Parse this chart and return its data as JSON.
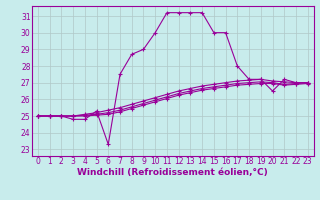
{
  "xlabel": "Windchill (Refroidissement éolien,°C)",
  "bg_color": "#c8ecec",
  "line_color": "#990099",
  "grid_color": "#b0c8c8",
  "x_ticks": [
    0,
    1,
    2,
    3,
    4,
    5,
    6,
    7,
    8,
    9,
    10,
    11,
    12,
    13,
    14,
    15,
    16,
    17,
    18,
    19,
    20,
    21,
    22,
    23
  ],
  "y_ticks": [
    23,
    24,
    25,
    26,
    27,
    28,
    29,
    30,
    31
  ],
  "ylim": [
    22.6,
    31.6
  ],
  "xlim": [
    -0.5,
    23.5
  ],
  "series": [
    [
      25.0,
      25.0,
      25.0,
      24.8,
      24.8,
      25.3,
      23.3,
      27.5,
      28.7,
      29.0,
      30.0,
      31.2,
      31.2,
      31.2,
      31.2,
      30.0,
      30.0,
      28.0,
      27.2,
      27.2,
      26.5,
      27.2,
      27.0,
      27.0
    ],
    [
      25.0,
      25.0,
      25.0,
      25.0,
      25.1,
      25.2,
      25.35,
      25.5,
      25.7,
      25.9,
      26.1,
      26.3,
      26.5,
      26.65,
      26.8,
      26.9,
      27.0,
      27.1,
      27.15,
      27.2,
      27.1,
      27.05,
      27.0,
      27.0
    ],
    [
      25.0,
      25.0,
      25.0,
      25.0,
      25.05,
      25.1,
      25.2,
      25.35,
      25.55,
      25.75,
      25.95,
      26.15,
      26.35,
      26.5,
      26.65,
      26.75,
      26.85,
      26.95,
      27.0,
      27.05,
      27.0,
      26.9,
      26.95,
      27.0
    ],
    [
      25.0,
      25.0,
      25.0,
      25.0,
      25.0,
      25.05,
      25.1,
      25.25,
      25.45,
      25.65,
      25.85,
      26.05,
      26.25,
      26.4,
      26.55,
      26.65,
      26.75,
      26.85,
      26.9,
      26.95,
      26.95,
      26.85,
      26.9,
      26.95
    ]
  ],
  "tick_fontsize": 5.5,
  "label_fontsize": 6.5
}
